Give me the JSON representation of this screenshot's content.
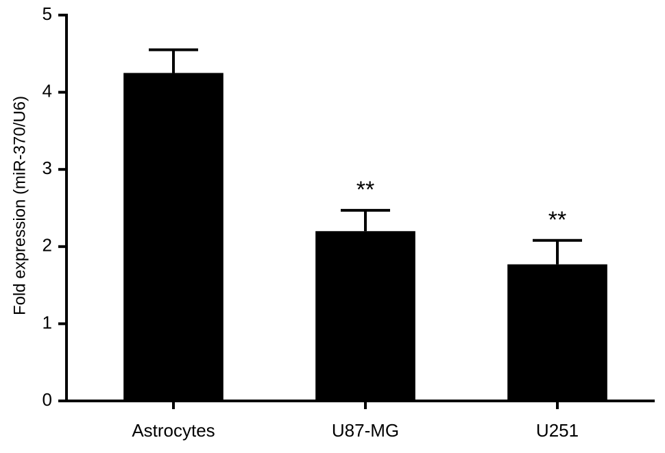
{
  "chart_data": {
    "type": "bar",
    "y_label": "Fold expression (miR-370/U6)",
    "categories": [
      "Astrocytes",
      "U87-MG",
      "U251"
    ],
    "values": [
      4.25,
      2.2,
      1.77
    ],
    "errors": [
      0.3,
      0.27,
      0.31
    ],
    "significance": [
      null,
      "**",
      "**"
    ],
    "color": "#000000",
    "ylim": [
      0,
      5
    ],
    "yticks": [
      0,
      1,
      2,
      3,
      4,
      5
    ],
    "grid": false
  }
}
